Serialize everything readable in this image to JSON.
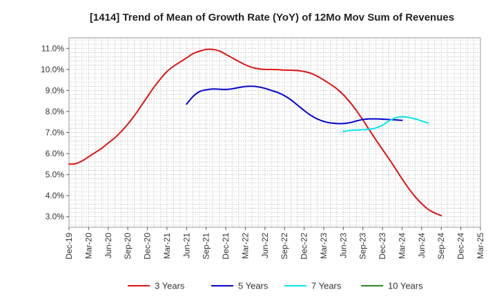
{
  "chart_data": {
    "type": "line",
    "title": "[1414]  Trend of Mean of Growth Rate (YoY) of 12Mo Mov Sum of Revenues",
    "xlabel": "",
    "ylabel": "",
    "x_ticks": [
      "Dec-19",
      "Mar-20",
      "Jun-20",
      "Sep-20",
      "Dec-20",
      "Mar-21",
      "Jun-21",
      "Sep-21",
      "Dec-21",
      "Mar-22",
      "Jun-22",
      "Sep-22",
      "Dec-22",
      "Mar-23",
      "Jun-23",
      "Sep-23",
      "Dec-23",
      "Mar-24",
      "Jun-24",
      "Sep-24",
      "Dec-24",
      "Mar-25"
    ],
    "y_ticks": [
      "3.0%",
      "4.0%",
      "5.0%",
      "6.0%",
      "7.0%",
      "8.0%",
      "9.0%",
      "10.0%",
      "11.0%"
    ],
    "ylim": [
      2.5,
      11.5
    ],
    "grid": true,
    "legend_position": "bottom",
    "series": [
      {
        "name": "3 Years",
        "color": "#dd1111",
        "start_index": 0,
        "values": [
          5.5,
          5.52,
          5.65,
          5.85,
          6.05,
          6.25,
          6.5,
          6.75,
          7.05,
          7.4,
          7.8,
          8.25,
          8.7,
          9.15,
          9.55,
          9.9,
          10.15,
          10.35,
          10.55,
          10.75,
          10.87,
          10.95,
          10.95,
          10.88,
          10.72,
          10.55,
          10.38,
          10.22,
          10.1,
          10.03,
          10.0,
          10.0,
          9.99,
          9.97,
          9.96,
          9.95,
          9.9,
          9.82,
          9.68,
          9.5,
          9.3,
          9.08,
          8.8,
          8.45,
          8.05,
          7.6,
          7.12,
          6.65,
          6.2,
          5.75,
          5.28,
          4.8,
          4.35,
          3.95,
          3.62,
          3.35,
          3.18,
          3.05
        ]
      },
      {
        "name": "5 Years",
        "color": "#0000cc",
        "start_index": 18,
        "values": [
          8.35,
          8.72,
          8.95,
          9.03,
          9.07,
          9.06,
          9.05,
          9.08,
          9.14,
          9.19,
          9.2,
          9.17,
          9.1,
          9.0,
          8.9,
          8.75,
          8.55,
          8.3,
          8.05,
          7.82,
          7.65,
          7.53,
          7.46,
          7.43,
          7.43,
          7.47,
          7.55,
          7.62,
          7.65,
          7.65,
          7.64,
          7.62,
          7.6,
          7.58
        ]
      },
      {
        "name": "7 Years",
        "color": "#00e5ee",
        "start_index": 42,
        "values": [
          7.05,
          7.1,
          7.12,
          7.13,
          7.16,
          7.22,
          7.35,
          7.55,
          7.7,
          7.75,
          7.72,
          7.65,
          7.55,
          7.45
        ]
      },
      {
        "name": "10 Years",
        "color": "#228b22",
        "start_index": 0,
        "values": []
      }
    ]
  }
}
